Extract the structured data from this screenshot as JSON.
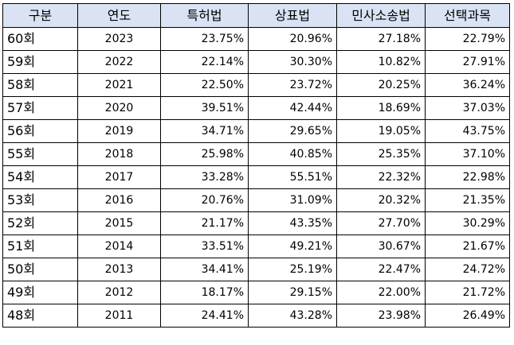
{
  "table": {
    "headers": [
      "구분",
      "연도",
      "특허법",
      "상표법",
      "민사소송법",
      "선택과목"
    ],
    "rows": [
      {
        "round": "60회",
        "year": "2023",
        "patent": "23.75%",
        "trademark": "20.96%",
        "civil": "27.18%",
        "elective": "22.79%"
      },
      {
        "round": "59회",
        "year": "2022",
        "patent": "22.14%",
        "trademark": "30.30%",
        "civil": "10.82%",
        "elective": "27.91%"
      },
      {
        "round": "58회",
        "year": "2021",
        "patent": "22.50%",
        "trademark": "23.72%",
        "civil": "20.25%",
        "elective": "36.24%"
      },
      {
        "round": "57회",
        "year": "2020",
        "patent": "39.51%",
        "trademark": "42.44%",
        "civil": "18.69%",
        "elective": "37.03%"
      },
      {
        "round": "56회",
        "year": "2019",
        "patent": "34.71%",
        "trademark": "29.65%",
        "civil": "19.05%",
        "elective": "43.75%"
      },
      {
        "round": "55회",
        "year": "2018",
        "patent": "25.98%",
        "trademark": "40.85%",
        "civil": "25.35%",
        "elective": "37.10%"
      },
      {
        "round": "54회",
        "year": "2017",
        "patent": "33.28%",
        "trademark": "55.51%",
        "civil": "22.32%",
        "elective": "22.98%"
      },
      {
        "round": "53회",
        "year": "2016",
        "patent": "20.76%",
        "trademark": "31.09%",
        "civil": "20.32%",
        "elective": "21.35%"
      },
      {
        "round": "52회",
        "year": "2015",
        "patent": "21.17%",
        "trademark": "43.35%",
        "civil": "27.70%",
        "elective": "30.29%"
      },
      {
        "round": "51회",
        "year": "2014",
        "patent": "33.51%",
        "trademark": "49.21%",
        "civil": "30.67%",
        "elective": "21.67%"
      },
      {
        "round": "50회",
        "year": "2013",
        "patent": "34.41%",
        "trademark": "25.19%",
        "civil": "22.47%",
        "elective": "24.72%"
      },
      {
        "round": "49회",
        "year": "2012",
        "patent": "18.17%",
        "trademark": "29.15%",
        "civil": "22.00%",
        "elective": "21.72%"
      },
      {
        "round": "48회",
        "year": "2011",
        "patent": "24.41%",
        "trademark": "43.28%",
        "civil": "23.98%",
        "elective": "26.49%"
      }
    ]
  },
  "colors": {
    "header_background": "#dae3f3",
    "border": "#000000",
    "text": "#000000"
  }
}
